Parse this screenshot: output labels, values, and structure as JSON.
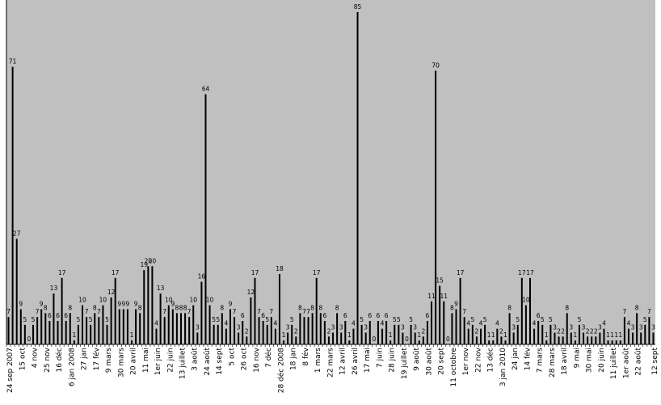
{
  "chart_data": {
    "type": "bar",
    "title": "",
    "xlabel": "",
    "ylabel": "",
    "ylim": [
      0,
      85
    ],
    "grid": false,
    "legend": "none",
    "colors": {
      "plot_background": "#c0c0c0",
      "bar": "#000000",
      "page_background": "#ffffff"
    },
    "values": [
      7,
      71,
      27,
      9,
      5,
      0,
      5,
      7,
      9,
      8,
      6,
      13,
      6,
      17,
      6,
      8,
      1,
      5,
      10,
      7,
      5,
      8,
      7,
      10,
      5,
      12,
      17,
      9,
      9,
      9,
      1,
      9,
      8,
      19,
      20,
      20,
      4,
      13,
      7,
      10,
      9,
      8,
      8,
      8,
      7,
      10,
      3,
      16,
      64,
      10,
      5,
      5,
      8,
      4,
      9,
      7,
      3,
      6,
      2,
      12,
      17,
      7,
      6,
      5,
      7,
      4,
      18,
      1,
      3,
      5,
      2,
      8,
      7,
      7,
      8,
      17,
      8,
      6,
      2,
      3,
      8,
      3,
      6,
      1,
      4,
      85,
      5,
      3,
      6,
      0,
      6,
      4,
      6,
      1,
      5,
      5,
      3,
      0,
      5,
      3,
      1,
      2,
      6,
      11,
      70,
      15,
      11,
      0,
      8,
      9,
      17,
      7,
      4,
      5,
      2,
      4,
      5,
      1,
      1,
      4,
      2,
      1,
      8,
      3,
      5,
      17,
      10,
      17,
      4,
      6,
      5,
      1,
      5,
      3,
      2,
      2,
      8,
      3,
      1,
      5,
      3,
      2,
      2,
      2,
      3,
      4,
      1,
      1,
      1,
      1,
      7,
      4,
      3,
      8,
      3,
      5,
      7,
      3
    ],
    "value_labels": [
      "7",
      "71",
      "27",
      "9",
      "5",
      "0",
      "5",
      "7",
      "9",
      "8",
      "6",
      "13",
      "6",
      "17",
      "6",
      "8",
      "1",
      "5",
      "10",
      "7",
      "5",
      "8",
      "7",
      "10",
      "5",
      "12",
      "17",
      "9",
      "9",
      "9",
      "1",
      "9",
      "8",
      "19",
      "20",
      "20",
      "4",
      "13",
      "7",
      "10",
      "9",
      "8",
      "8",
      "8",
      "7",
      "10",
      "3",
      "16",
      "64",
      "10",
      "5",
      "5",
      "8",
      "4",
      "9",
      "7",
      "3",
      "6",
      "2",
      "12",
      "17",
      "7",
      "6",
      "5",
      "7",
      "4",
      "18",
      "1",
      "3",
      "5",
      "2",
      "8",
      "7",
      "7",
      "8",
      "17",
      "8",
      "6",
      "2",
      "3",
      "8",
      "3",
      "6",
      "1",
      "4",
      "85",
      "5",
      "3",
      "6",
      "0",
      "6",
      "4",
      "6",
      "1",
      "5",
      "5",
      "3",
      "0",
      "5",
      "3",
      "1",
      "2",
      "6",
      "11",
      "70",
      "15",
      "11",
      "0",
      "8",
      "9",
      "17",
      "7",
      "4",
      "5",
      "2",
      "4",
      "5",
      "1",
      "1",
      "4",
      "2",
      "1",
      "8",
      "3",
      "5",
      "17",
      "10",
      "17",
      "4",
      "6",
      "5",
      "1",
      "5",
      "3",
      "2",
      "2",
      "8",
      "3",
      "1",
      "5",
      "3",
      "2",
      "2",
      "2",
      "3",
      "4",
      "1",
      "1",
      "1",
      "1",
      "7",
      "4",
      "3",
      "8",
      "3",
      "5",
      "7",
      "3"
    ],
    "category_labels": [
      {
        "text": "24 sep 2007",
        "index": 0
      },
      {
        "text": "15 oct",
        "index": 3
      },
      {
        "text": "4 nov",
        "index": 6
      },
      {
        "text": "25 nov",
        "index": 9
      },
      {
        "text": "16 déc",
        "index": 12
      },
      {
        "text": "6 jan 2008",
        "index": 15
      },
      {
        "text": "27 jan",
        "index": 18
      },
      {
        "text": "17 fév",
        "index": 21
      },
      {
        "text": "9 mars",
        "index": 24
      },
      {
        "text": "30 mars",
        "index": 27
      },
      {
        "text": "20 avril",
        "index": 30
      },
      {
        "text": "11 mai",
        "index": 33
      },
      {
        "text": "1er juin",
        "index": 36
      },
      {
        "text": "22 juin",
        "index": 39
      },
      {
        "text": "13 juillet",
        "index": 42
      },
      {
        "text": "3 août",
        "index": 45
      },
      {
        "text": "24 août",
        "index": 48
      },
      {
        "text": "14 sept",
        "index": 51
      },
      {
        "text": "5 oct",
        "index": 54
      },
      {
        "text": "26 oct",
        "index": 57
      },
      {
        "text": "16 nov",
        "index": 60
      },
      {
        "text": "7 déc",
        "index": 63
      },
      {
        "text": "28 déc 2008",
        "index": 66
      },
      {
        "text": "18 jan",
        "index": 69
      },
      {
        "text": "8 fév",
        "index": 72
      },
      {
        "text": "1 mars",
        "index": 75
      },
      {
        "text": "22 mars",
        "index": 78
      },
      {
        "text": "12 avril",
        "index": 81
      },
      {
        "text": "26 avril",
        "index": 84
      },
      {
        "text": "17 mai",
        "index": 87
      },
      {
        "text": "7 juin",
        "index": 90
      },
      {
        "text": "28 juin",
        "index": 93
      },
      {
        "text": "19 juillet",
        "index": 96
      },
      {
        "text": "9 août",
        "index": 99
      },
      {
        "text": "30 août",
        "index": 102
      },
      {
        "text": "20 sept",
        "index": 105
      },
      {
        "text": "11 octobre",
        "index": 108
      },
      {
        "text": "1er nov",
        "index": 111
      },
      {
        "text": "22 nov",
        "index": 114
      },
      {
        "text": "13 déc",
        "index": 117
      },
      {
        "text": "3 jan 2010",
        "index": 120
      },
      {
        "text": "24 jan",
        "index": 123
      },
      {
        "text": "14 fév",
        "index": 126
      },
      {
        "text": "7 mars",
        "index": 129
      },
      {
        "text": "28 mars",
        "index": 132
      },
      {
        "text": "18 avril",
        "index": 135
      },
      {
        "text": "9 mai",
        "index": 138
      },
      {
        "text": "30 mai",
        "index": 141
      },
      {
        "text": "20 juin",
        "index": 144
      },
      {
        "text": "11 juillet",
        "index": 147
      },
      {
        "text": "1er août",
        "index": 150
      },
      {
        "text": "22 août",
        "index": 153
      },
      {
        "text": "12 sept",
        "index": 157
      }
    ]
  }
}
